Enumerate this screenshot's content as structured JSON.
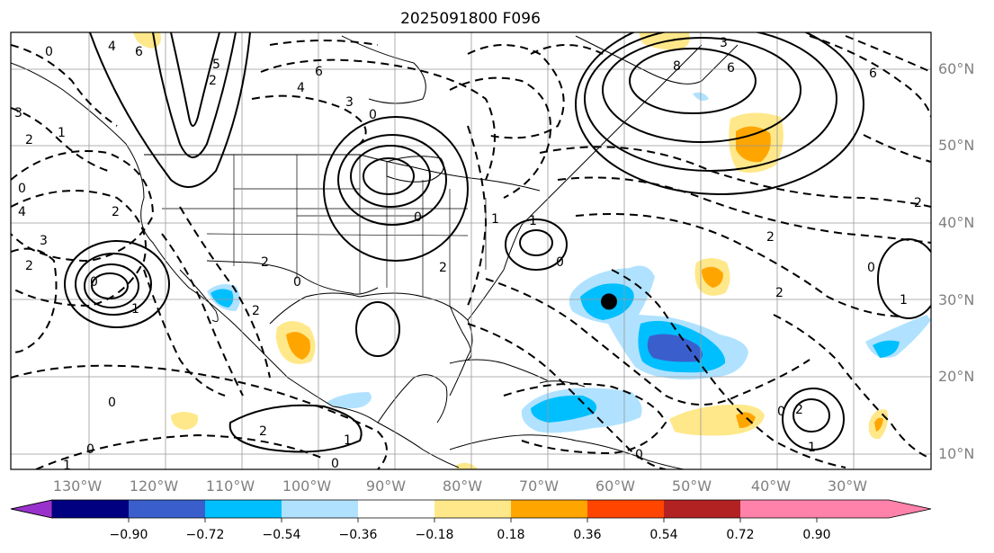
{
  "title": "2025091800 F096",
  "lon_labels": [
    "130°W",
    "120°W",
    "110°W",
    "100°W",
    "90°W",
    "80°W",
    "70°W",
    "60°W",
    "50°W",
    "40°W",
    "30°W"
  ],
  "lat_labels": [
    "10°N",
    "20°N",
    "30°N",
    "40°N",
    "50°N",
    "60°N"
  ],
  "map_extent": {
    "lon_min": -138,
    "lon_max": -18,
    "lat_min": 8,
    "lat_max": 64
  },
  "colorbar": {
    "ticks": [
      "−0.90",
      "−0.72",
      "−0.54",
      "−0.36",
      "−0.18",
      "0.18",
      "0.36",
      "0.54",
      "0.72",
      "0.90"
    ],
    "colors": [
      "#9932cc",
      "#000080",
      "#3a5fcd",
      "#00bfff",
      "#b0e2ff",
      "#ffffff",
      "#ffe88a",
      "#ffa500",
      "#ff4500",
      "#b22222",
      "#ff82ab"
    ]
  },
  "contour_labels": {
    "l1": "0",
    "l2": "4",
    "l3": "6",
    "l4": "3",
    "l5": "2",
    "l6": "1",
    "l7": "0",
    "l8": "2",
    "l9": "3",
    "l10": "2",
    "l11": "0",
    "l12": "1",
    "l13": "6",
    "l14": "8",
    "l15": "6",
    "l16": "3",
    "l17": "2",
    "l18": "2",
    "l19": "1",
    "l20": "2",
    "l21": "0",
    "l22": "1",
    "l23": "0",
    "l24": "2",
    "l25": "4",
    "l26": "0",
    "l27": "1",
    "l28": "0",
    "l29": "2",
    "l30": "1",
    "l31": "0",
    "l32": "0",
    "l33": "2",
    "l34": "0",
    "l35": "1",
    "l36": "0",
    "l37": "3",
    "l38": "2",
    "l39": "4",
    "l40": "0",
    "l41": "1",
    "l42": "0",
    "l43": "2",
    "l44": "6",
    "l45": "5",
    "l46": "2"
  },
  "marker": {
    "label": "storm-center",
    "lon": -60,
    "lat": 29.5
  }
}
